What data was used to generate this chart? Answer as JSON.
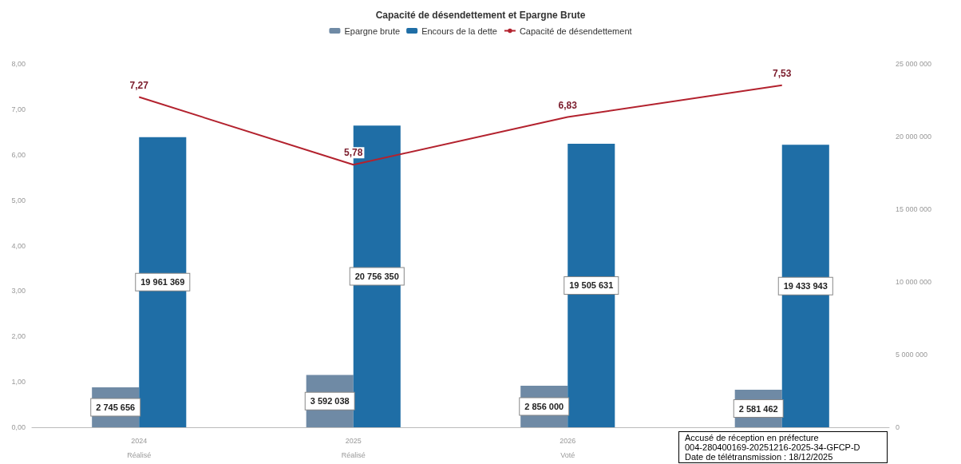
{
  "chart_data": {
    "type": "bar",
    "title": "Capacité de désendettement et Epargne Brute",
    "categories": [
      "2024\nRéalisé",
      "2025\nRéalisé",
      "2026\nVoté",
      null
    ],
    "series": [
      {
        "name": "Epargne brute",
        "axis": "y2",
        "color": "#6f8aa5",
        "values": [
          2745656,
          3592038,
          2856000,
          2581462
        ],
        "value_labels": [
          "2 745 656",
          "3 592 038",
          "2 856 000",
          "2 581 462"
        ]
      },
      {
        "name": "Encours de la dette",
        "axis": "y2",
        "color": "#1f6ea6",
        "values": [
          19961369,
          20756350,
          19505631,
          19433943
        ],
        "value_labels": [
          "19 961 369",
          "20 756 350",
          "19 505 631",
          "19 433 943"
        ]
      },
      {
        "name": "Capacité de désendettement",
        "type": "line",
        "color": "#b3222e",
        "values": [
          7.27,
          5.78,
          6.83,
          7.53
        ],
        "value_labels": [
          "7,27",
          "5,78",
          "6,83",
          "7,53"
        ]
      }
    ],
    "ylim": [
      0,
      8
    ],
    "yticks": [
      {
        "value": 0,
        "label": "0,00"
      },
      {
        "value": 1,
        "label": "1,00"
      },
      {
        "value": 2,
        "label": "2,00"
      },
      {
        "value": 3,
        "label": "3,00"
      },
      {
        "value": 4,
        "label": "4,00"
      },
      {
        "value": 5,
        "label": "5,00"
      },
      {
        "value": 6,
        "label": "6,00"
      },
      {
        "value": 7,
        "label": "7,00"
      },
      {
        "value": 8,
        "label": "8,00"
      }
    ],
    "y2lim": [
      0,
      25000000
    ],
    "y2ticks": [
      0,
      {
        "value": 5000000,
        "label": "5 000 000"
      },
      {
        "value": 10000000,
        "label": "10 000 000"
      },
      {
        "value": 15000000,
        "label": "15 000 000"
      },
      {
        "value": 20000000,
        "label": "20 000 000"
      },
      {
        "value": 25000000,
        "label": "25 000 000"
      }
    ],
    "legend": "top",
    "grid": false,
    "marker": "none",
    "annotations": [
      "Accusé de réception en préfecture",
      "004-280400169-20251216-2025-34-GFCP-D",
      "Date de télétransmission : 18/12/2025"
    ]
  }
}
